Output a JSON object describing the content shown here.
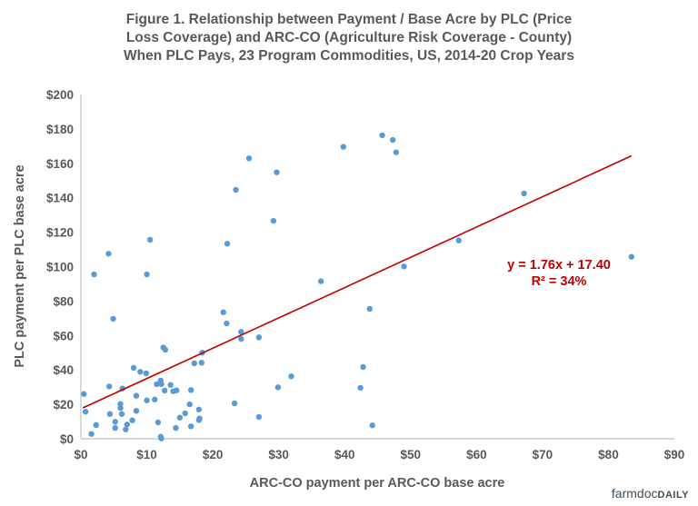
{
  "title_lines": [
    "Figure 1.  Relationship between Payment / Base Acre by PLC (Price",
    "Loss Coverage) and ARC-CO (Agriculture Risk Coverage - County)",
    "When PLC Pays, 23 Program Commodities, US, 2014-20 Crop Years"
  ],
  "logo": {
    "part1": "farmdoc",
    "part2": "DAILY"
  },
  "colors": {
    "points": "#5b9bd5",
    "trendline": "#c00000",
    "text": "#595959",
    "axis": "#d9d9d9"
  },
  "chart_data": {
    "type": "scatter",
    "title": "Figure 1.  Relationship between Payment / Base Acre by PLC (Price Loss Coverage) and ARC-CO (Agriculture Risk Coverage - County) When PLC Pays, 23 Program Commodities, US, 2014-20 Crop Years",
    "xlabel": "ARC-CO payment per ARC-CO base acre",
    "ylabel": "PLC payment per PLC base acre",
    "xlim": [
      0,
      90
    ],
    "ylim": [
      0,
      200
    ],
    "xticks": [
      "$0",
      "$10",
      "$20",
      "$30",
      "$40",
      "$50",
      "$60",
      "$70",
      "$80",
      "$90"
    ],
    "yticks": [
      "$0",
      "$20",
      "$40",
      "$60",
      "$80",
      "$100",
      "$120",
      "$140",
      "$160",
      "$180",
      "$200"
    ],
    "grid": false,
    "trendline": {
      "slope": 1.76,
      "intercept": 17.4,
      "x_range": [
        0.3,
        83.5
      ],
      "equation_label": "y = 1.76x + 17.40",
      "r2_label": "R² = 34%"
    },
    "points": [
      [
        0.45,
        26
      ],
      [
        0.7,
        15.7
      ],
      [
        1.6,
        2.8
      ],
      [
        2.3,
        8
      ],
      [
        4.9,
        69.7
      ],
      [
        4.3,
        30.4
      ],
      [
        4.4,
        14.4
      ],
      [
        5.2,
        9.9
      ],
      [
        5.2,
        6.3
      ],
      [
        6,
        17.9
      ],
      [
        6,
        20.2
      ],
      [
        6.2,
        14.4
      ],
      [
        6.3,
        29.2
      ],
      [
        7,
        8.3
      ],
      [
        6.8,
        5.4
      ],
      [
        7.8,
        10.7
      ],
      [
        8,
        41.2
      ],
      [
        8.4,
        25
      ],
      [
        8.4,
        16.2
      ],
      [
        9,
        38.9
      ],
      [
        9.9,
        38
      ],
      [
        10,
        22.3
      ],
      [
        11.2,
        22.8
      ],
      [
        11.7,
        9.5
      ],
      [
        11.5,
        31.7
      ],
      [
        12.1,
        33.8
      ],
      [
        12.2,
        31.8
      ],
      [
        12.1,
        1.2
      ],
      [
        12.2,
        0.2
      ],
      [
        12.5,
        53
      ],
      [
        12.8,
        51.7
      ],
      [
        12.7,
        28
      ],
      [
        13.6,
        31.3
      ],
      [
        14,
        27.6
      ],
      [
        14.5,
        28.1
      ],
      [
        14.4,
        6.3
      ],
      [
        15,
        12.3
      ],
      [
        15.8,
        14.8
      ],
      [
        16.5,
        20
      ],
      [
        16.7,
        28.3
      ],
      [
        16.7,
        7.2
      ],
      [
        17.2,
        43.8
      ],
      [
        17.9,
        17
      ],
      [
        17.9,
        10.9
      ],
      [
        18,
        11.8
      ],
      [
        18.3,
        44.2
      ],
      [
        18.4,
        50
      ],
      [
        21.6,
        73.5
      ],
      [
        22.1,
        67
      ],
      [
        2,
        95.5
      ],
      [
        4.2,
        107.5
      ],
      [
        10,
        95.5
      ],
      [
        10.5,
        115.6
      ],
      [
        22.2,
        113.3
      ],
      [
        23.5,
        144.6
      ],
      [
        25.5,
        162.9
      ],
      [
        29.2,
        126.6
      ],
      [
        29.7,
        154.8
      ],
      [
        36.4,
        91.5
      ],
      [
        24.3,
        62.1
      ],
      [
        24.3,
        58
      ],
      [
        27,
        58.9
      ],
      [
        23.3,
        20.6
      ],
      [
        27,
        12.7
      ],
      [
        29.9,
        29.9
      ],
      [
        31.9,
        36.3
      ],
      [
        43.8,
        75.5
      ],
      [
        42.8,
        41.7
      ],
      [
        42.4,
        29.6
      ],
      [
        44.2,
        7.8
      ],
      [
        39.8,
        169.6
      ],
      [
        45.7,
        176.3
      ],
      [
        47.3,
        173.6
      ],
      [
        47.8,
        166.4
      ],
      [
        67.2,
        142.5
      ],
      [
        57.3,
        115.2
      ],
      [
        49,
        100.1
      ],
      [
        83.5,
        105.7
      ]
    ]
  }
}
